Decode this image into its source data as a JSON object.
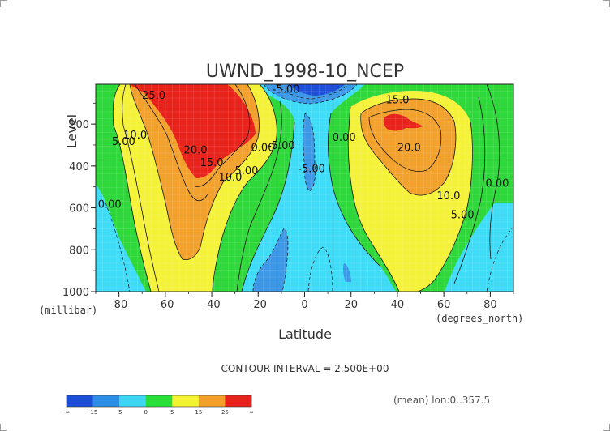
{
  "chart_data": {
    "type": "heatmap",
    "title": "UWND_1998-10_NCEP",
    "xlabel": "Latitude",
    "ylabel": "Level",
    "x_units": "(degrees_north)",
    "y_units": "(millibar)",
    "xlim": [
      -90,
      90
    ],
    "ylim": [
      1000,
      10
    ],
    "x_ticks": [
      "-80",
      "-60",
      "-40",
      "-20",
      "0",
      "20",
      "40",
      "60",
      "80"
    ],
    "x_tick_values": [
      -80,
      -60,
      -40,
      -20,
      0,
      20,
      40,
      60,
      80
    ],
    "y_ticks": [
      "200",
      "400",
      "600",
      "800",
      "1000"
    ],
    "y_tick_values": [
      200,
      400,
      600,
      800,
      1000
    ],
    "contour_interval_text": "CONTOUR INTERVAL = 2.500E+00",
    "footnote": "(mean) lon:0..357.5",
    "contour_labels": [
      {
        "text": "25.0",
        "x": -65,
        "y": 80
      },
      {
        "text": "10.0",
        "x": -73,
        "y": 270
      },
      {
        "text": "5.00",
        "x": -78,
        "y": 300
      },
      {
        "text": "0.00",
        "x": -84,
        "y": 600
      },
      {
        "text": "20.0",
        "x": -47,
        "y": 340
      },
      {
        "text": "15.0",
        "x": -40,
        "y": 400
      },
      {
        "text": "10.0",
        "x": -32,
        "y": 470
      },
      {
        "text": "5.00",
        "x": -25,
        "y": 440
      },
      {
        "text": "0.00",
        "x": -18,
        "y": 330
      },
      {
        "text": "-5.00",
        "x": -10,
        "y": 320
      },
      {
        "text": "-5.00",
        "x": 3,
        "y": 430
      },
      {
        "text": "-5.00",
        "x": -8,
        "y": 50
      },
      {
        "text": "0.00",
        "x": 17,
        "y": 280
      },
      {
        "text": "15.0",
        "x": 40,
        "y": 100
      },
      {
        "text": "20.0",
        "x": 45,
        "y": 330
      },
      {
        "text": "10.0",
        "x": 62,
        "y": 560
      },
      {
        "text": "5.00",
        "x": 68,
        "y": 650
      },
      {
        "text": "0.00",
        "x": 83,
        "y": 500
      }
    ],
    "colorbar": {
      "labels": [
        "-∞",
        "-15",
        "-5",
        "0",
        "5",
        "15",
        "25",
        "∞"
      ],
      "colors": [
        "#1a4fd6",
        "#2e8ee3",
        "#3fd6f5",
        "#2adf3a",
        "#f2f233",
        "#f2a02a",
        "#e8231c"
      ]
    },
    "fill_colors": {
      "deep_blue": "#1f4fd8",
      "mid_blue": "#3c97e6",
      "cyan": "#3fdcf8",
      "green": "#2fd83a",
      "yellow": "#f5f23a",
      "orange": "#f2a12c",
      "red": "#e8231c"
    }
  }
}
